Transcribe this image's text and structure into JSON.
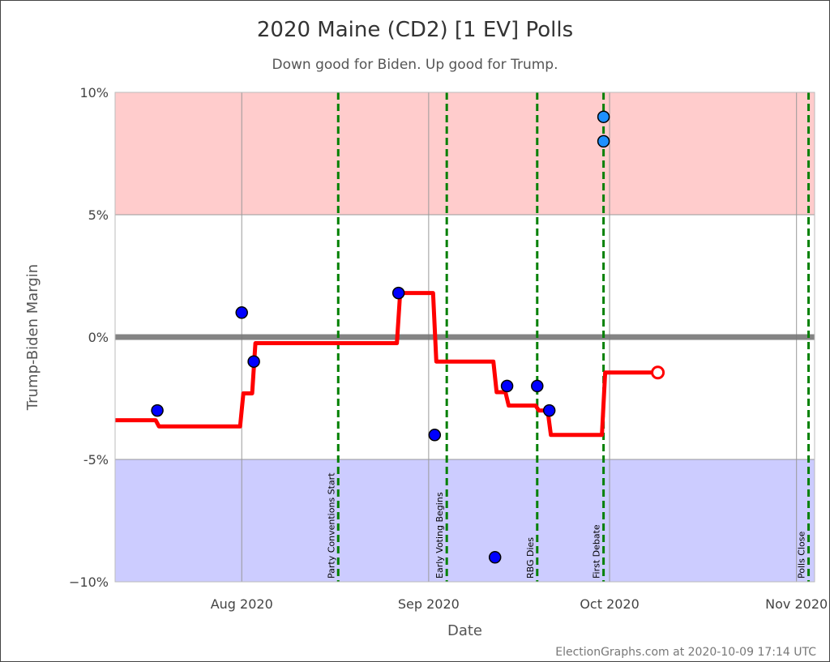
{
  "chart_data": {
    "type": "line",
    "title": "2020 Maine (CD2) [1 EV] Polls",
    "subtitle": "Down good for Biden. Up good for Trump.",
    "xlabel": "Date",
    "ylabel": "Trump-Biden Margin",
    "xlim": [
      "2020-07-11",
      "2020-11-04"
    ],
    "ylim": [
      -10,
      10
    ],
    "x_ticks": [
      {
        "date": "2020-08-01",
        "label": "Aug 2020"
      },
      {
        "date": "2020-09-01",
        "label": "Sep 2020"
      },
      {
        "date": "2020-10-01",
        "label": "Oct 2020"
      },
      {
        "date": "2020-11-01",
        "label": "Nov 2020"
      }
    ],
    "y_ticks": [
      {
        "value": 10,
        "label": "10%"
      },
      {
        "value": 5,
        "label": "5%"
      },
      {
        "value": 0,
        "label": "0%"
      },
      {
        "value": -5,
        "label": "-5%"
      },
      {
        "value": -10,
        "label": "−10%"
      }
    ],
    "zones": [
      {
        "from": 5,
        "to": 10,
        "color": "#ffcccc"
      },
      {
        "from": -10,
        "to": -5,
        "color": "#ccccff"
      }
    ],
    "events": [
      {
        "date": "2020-08-17",
        "label": "Party Conventions Start"
      },
      {
        "date": "2020-09-04",
        "label": "Early Voting Begins"
      },
      {
        "date": "2020-09-19",
        "label": "RBG Dies"
      },
      {
        "date": "2020-09-30",
        "label": "First Debate"
      },
      {
        "date": "2020-11-03",
        "label": "Polls Close"
      }
    ],
    "polls": [
      {
        "date": "2020-07-18",
        "margin": -3,
        "color": "#0000ff"
      },
      {
        "date": "2020-08-01",
        "margin": 1,
        "color": "#0000ff"
      },
      {
        "date": "2020-08-03",
        "margin": -1,
        "color": "#0000ff"
      },
      {
        "date": "2020-08-27",
        "margin": 1.8,
        "color": "#0000ff"
      },
      {
        "date": "2020-09-02",
        "margin": -4,
        "color": "#0000ff"
      },
      {
        "date": "2020-09-12",
        "margin": -9,
        "color": "#0000ff"
      },
      {
        "date": "2020-09-14",
        "margin": -2,
        "color": "#0000ff"
      },
      {
        "date": "2020-09-19",
        "margin": -2,
        "color": "#0000ff"
      },
      {
        "date": "2020-09-21",
        "margin": -3,
        "color": "#0000ff"
      },
      {
        "date": "2020-09-30",
        "margin": 9,
        "color": "#1e90ff"
      },
      {
        "date": "2020-09-30",
        "margin": 8,
        "color": "#1e90ff"
      }
    ],
    "average_steps": [
      {
        "date": "2020-07-11",
        "margin": -3.4
      },
      {
        "date": "2020-07-18",
        "margin": -3.65
      },
      {
        "date": "2020-08-01",
        "margin": -2.3
      },
      {
        "date": "2020-08-03",
        "margin": -0.25
      },
      {
        "date": "2020-08-27",
        "margin": 1.8
      },
      {
        "date": "2020-09-02",
        "margin": -1.0
      },
      {
        "date": "2020-09-12",
        "margin": -2.25
      },
      {
        "date": "2020-09-14",
        "margin": -2.8
      },
      {
        "date": "2020-09-19",
        "margin": -3.0
      },
      {
        "date": "2020-09-21",
        "margin": -4.0
      },
      {
        "date": "2020-09-30",
        "margin": -1.45
      }
    ],
    "average_end": "2020-10-09",
    "average_color": "#ff0000",
    "event_color": "#008000"
  },
  "footer": "ElectionGraphs.com at 2020-10-09 17:14 UTC"
}
